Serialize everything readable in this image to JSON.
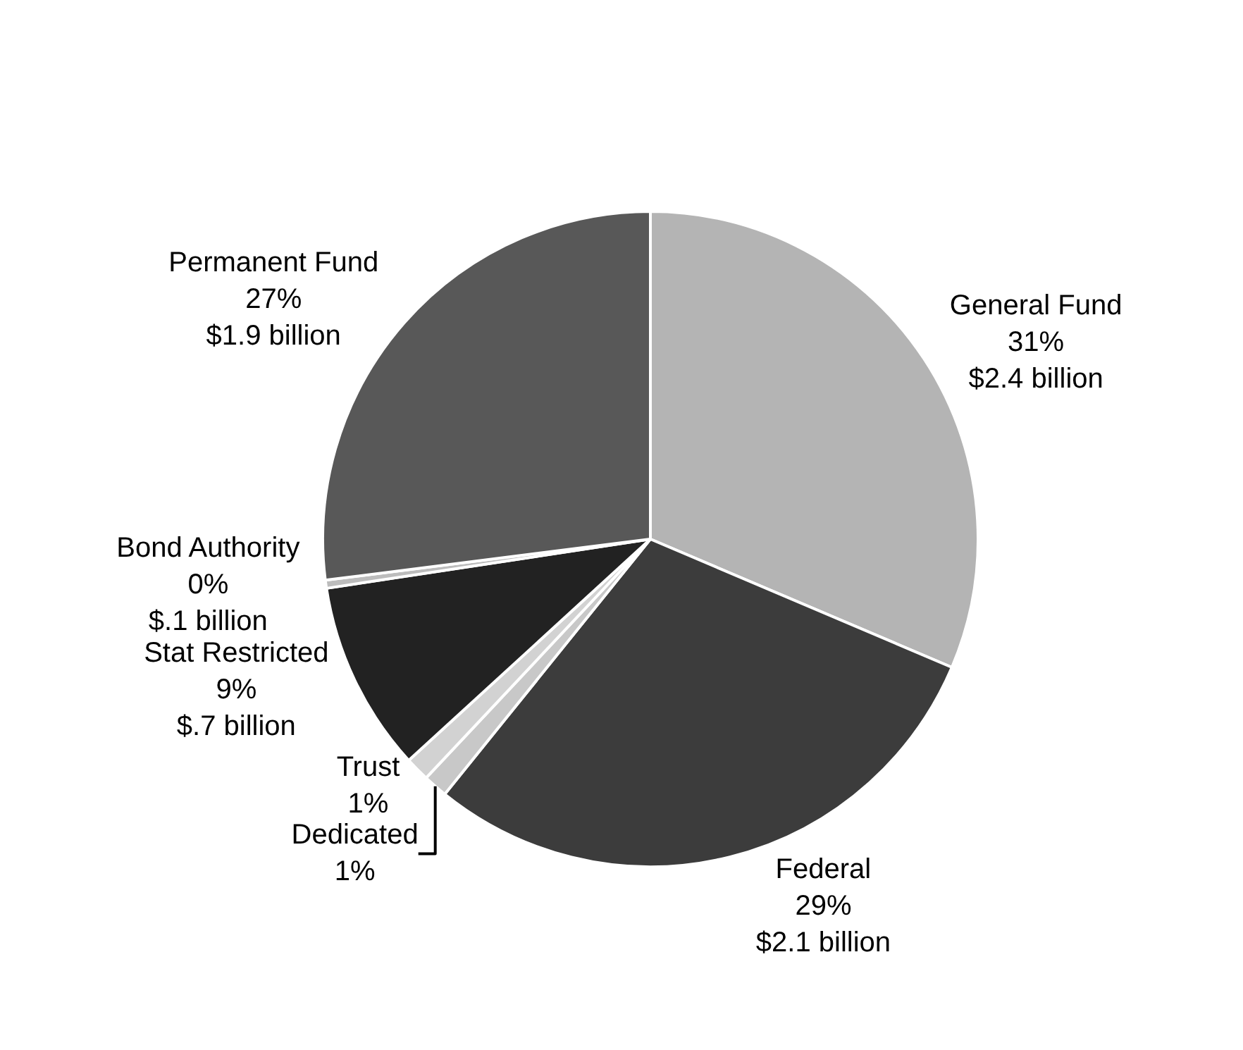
{
  "chart_data": {
    "type": "pie",
    "categories": [
      "General Fund",
      "Federal",
      "Dedicated",
      "Trust",
      "Stat Restricted",
      "Bond Authority",
      "Permanent Fund"
    ],
    "values": [
      31.4,
      29.4,
      1.2,
      1.2,
      9.4,
      0.4,
      27
    ],
    "value_labels": [
      "31%\n$2.4 billion",
      "29%\n$2.1 billion",
      "1%",
      "1%",
      "9%\n$.7 billion",
      "0%\n$.1 billion",
      "27%\n$1.9 billion"
    ],
    "colors": [
      "#b4b4b4",
      "#3c3c3c",
      "#c8c8c8",
      "#d2d2d2",
      "#222222",
      "#bcbcbc",
      "#585858"
    ],
    "legend": false
  }
}
